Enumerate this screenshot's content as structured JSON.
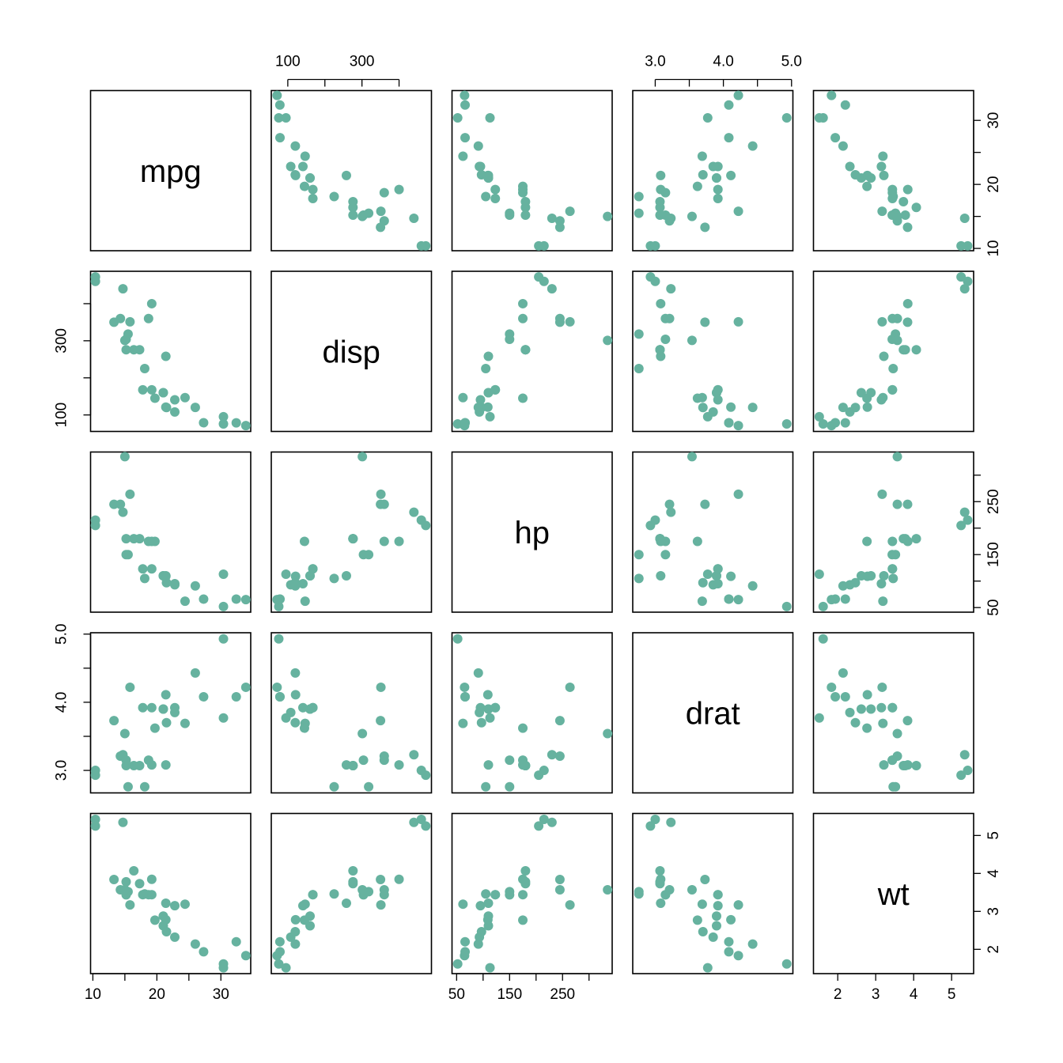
{
  "chart_data": {
    "type": "scatter",
    "kind": "scatterplot-matrix",
    "point_color": "#66b29f",
    "variables": [
      {
        "name": "mpg",
        "label": "mpg",
        "lim": [
          9.64,
          34.66
        ],
        "ticks": [
          10,
          15,
          20,
          25,
          30
        ],
        "tick_labels": [
          "10",
          "20",
          "30"
        ]
      },
      {
        "name": "disp",
        "label": "disp",
        "lim": [
          55.5,
          487.3
        ],
        "ticks": [
          100,
          200,
          300,
          400
        ],
        "tick_labels": [
          "100",
          "300"
        ]
      },
      {
        "name": "hp",
        "label": "hp",
        "lim": [
          41.3,
          343.7
        ],
        "ticks": [
          50,
          100,
          150,
          200,
          250,
          300
        ],
        "tick_labels": [
          "50",
          "150",
          "250"
        ]
      },
      {
        "name": "drat",
        "label": "drat",
        "lim": [
          2.67,
          5.02
        ],
        "ticks": [
          3.0,
          3.5,
          4.0,
          4.5,
          5.0
        ],
        "tick_labels": [
          "3.0",
          "4.0",
          "5.0"
        ]
      },
      {
        "name": "wt",
        "label": "wt",
        "lim": [
          1.36,
          5.58
        ],
        "ticks": [
          2,
          3,
          4,
          5
        ],
        "tick_labels": [
          "2",
          "3",
          "4",
          "5"
        ]
      }
    ],
    "axes": {
      "top": {
        "vars": [
          "disp",
          "drat"
        ],
        "tick_labels": [
          [
            "100",
            "300"
          ],
          [
            "3.0",
            "4.0",
            "5.0"
          ]
        ]
      },
      "bottom": {
        "vars": [
          "mpg",
          "hp",
          "wt"
        ],
        "tick_labels": [
          [
            "10",
            "20",
            "30"
          ],
          [
            "50",
            "150",
            "250"
          ],
          [
            "2",
            "3",
            "4",
            "5"
          ]
        ]
      },
      "left": {
        "vars": [
          "disp",
          "drat"
        ],
        "tick_labels": [
          [
            "100",
            "300"
          ],
          [
            "3.0",
            "4.0",
            "5.0"
          ]
        ]
      },
      "right": {
        "vars": [
          "mpg",
          "hp",
          "wt"
        ],
        "tick_labels": [
          [
            "10",
            "20",
            "30"
          ],
          [
            "50",
            "150",
            "250"
          ],
          [
            "2",
            "3",
            "4",
            "5"
          ]
        ]
      }
    },
    "data": {
      "mpg": [
        21.0,
        21.0,
        22.8,
        21.4,
        18.7,
        18.1,
        14.3,
        24.4,
        22.8,
        19.2,
        17.8,
        16.4,
        17.3,
        15.2,
        10.4,
        10.4,
        14.7,
        32.4,
        30.4,
        33.9,
        21.5,
        15.5,
        15.2,
        13.3,
        19.2,
        27.3,
        26.0,
        30.4,
        15.8,
        19.7,
        15.0,
        21.4
      ],
      "disp": [
        160,
        160,
        108,
        258,
        360,
        225,
        360,
        146.7,
        140.8,
        167.6,
        167.6,
        275.8,
        275.8,
        275.8,
        472,
        460,
        440,
        78.7,
        75.7,
        71.1,
        120.1,
        318,
        304,
        350,
        400,
        79,
        120.3,
        95.1,
        351,
        145,
        301,
        121
      ],
      "hp": [
        110,
        110,
        93,
        110,
        175,
        105,
        245,
        62,
        95,
        123,
        123,
        180,
        180,
        180,
        205,
        215,
        230,
        66,
        52,
        65,
        97,
        150,
        150,
        245,
        175,
        66,
        91,
        113,
        264,
        175,
        335,
        109
      ],
      "drat": [
        3.9,
        3.9,
        3.85,
        3.08,
        3.15,
        2.76,
        3.21,
        3.69,
        3.92,
        3.92,
        3.92,
        3.07,
        3.07,
        3.07,
        2.93,
        3.0,
        3.23,
        4.08,
        4.93,
        4.22,
        3.7,
        2.76,
        3.15,
        3.73,
        3.08,
        4.08,
        4.43,
        3.77,
        4.22,
        3.62,
        3.54,
        4.11
      ],
      "wt": [
        2.62,
        2.875,
        2.32,
        3.215,
        3.44,
        3.46,
        3.57,
        3.19,
        3.15,
        3.44,
        3.44,
        4.07,
        3.73,
        3.78,
        5.25,
        5.424,
        5.345,
        2.2,
        1.615,
        1.835,
        2.465,
        3.52,
        3.435,
        3.84,
        3.845,
        1.935,
        2.14,
        1.513,
        3.17,
        2.77,
        3.57,
        2.78
      ]
    }
  }
}
